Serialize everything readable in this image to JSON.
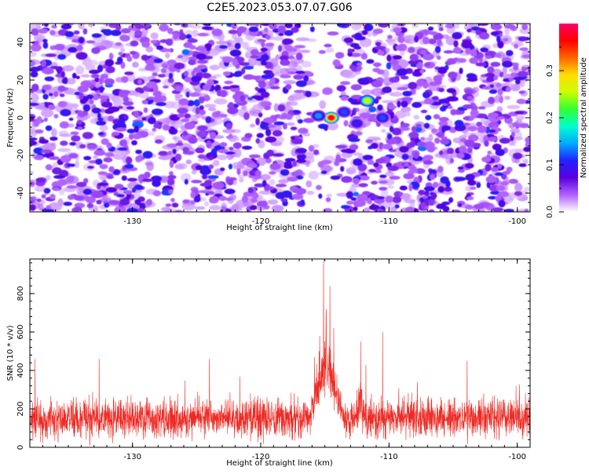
{
  "title": "C2E5.2023.053.07.07.G06",
  "colors": {
    "snr_line": "#ee2a24",
    "axis": "#000000",
    "background": "#ffffff"
  },
  "chart_data": [
    {
      "type": "heatmap",
      "xlabel": "Height of straight line (km)",
      "ylabel": "Frequency (Hz)",
      "xlim": [
        -138,
        -99
      ],
      "ylim": [
        -50,
        50
      ],
      "xticks": [
        -130,
        -120,
        -110,
        -100
      ],
      "yticks": [
        -40,
        -20,
        0,
        20,
        40
      ],
      "colorbar": {
        "label": "Normalized spectral amplitude",
        "range": [
          0,
          0.4
        ],
        "ticks": [
          "0.0",
          "0.1",
          "0.2",
          "0.3"
        ],
        "tick_values": [
          0,
          0.1,
          0.2,
          0.3
        ],
        "colormap": [
          "#ffffff",
          "#b060ff",
          "#5a00dd",
          "#2222ff",
          "#00aaff",
          "#00ffcc",
          "#33ff33",
          "#ccff00",
          "#ffdd00",
          "#ff6600",
          "#ff0000",
          "#ff0066"
        ]
      },
      "peak_features": [
        {
          "height_km": -114.5,
          "frequency_hz": 0,
          "amplitude": 0.38
        },
        {
          "height_km": -115.5,
          "frequency_hz": 1,
          "amplitude": 0.14
        },
        {
          "height_km": -113.5,
          "frequency_hz": 3,
          "amplitude": 0.12
        },
        {
          "height_km": -111.7,
          "frequency_hz": 9,
          "amplitude": 0.26
        },
        {
          "height_km": -110.5,
          "frequency_hz": 0,
          "amplitude": 0.12
        },
        {
          "height_km": -112.5,
          "frequency_hz": -3,
          "amplitude": 0.1
        }
      ]
    },
    {
      "type": "line",
      "xlabel": "Height of straight line (km)",
      "ylabel": "SNR (10 * v/v)",
      "xlim": [
        -138,
        -99
      ],
      "ylim": [
        0,
        980
      ],
      "xticks": [
        -130,
        -120,
        -110,
        -100
      ],
      "yticks": [
        0,
        200,
        400,
        600,
        800
      ],
      "baseline_mean": 150,
      "baseline_spread": 90,
      "series": [
        {
          "peaks": [
            {
              "x": -115.1,
              "y": 980
            },
            {
              "x": -114.6,
              "y": 840
            },
            {
              "x": -114.9,
              "y": 720
            },
            {
              "x": -115.4,
              "y": 580
            },
            {
              "x": -114.3,
              "y": 620
            },
            {
              "x": -112.2,
              "y": 550
            },
            {
              "x": -110.5,
              "y": 600
            },
            {
              "x": -115.8,
              "y": 470
            },
            {
              "x": -111.8,
              "y": 430
            },
            {
              "x": -103.9,
              "y": 450
            },
            {
              "x": -137.6,
              "y": 460
            },
            {
              "x": -124.0,
              "y": 460
            },
            {
              "x": -132.6,
              "y": 460
            },
            {
              "x": -100.1,
              "y": 320
            }
          ]
        }
      ]
    }
  ]
}
